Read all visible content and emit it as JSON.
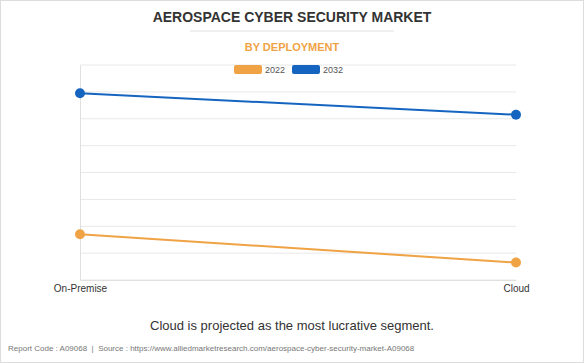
{
  "chart_data": {
    "type": "line",
    "title": "AEROSPACE CYBER SECURITY MARKET",
    "subtitle": "BY DEPLOYMENT",
    "annotations": [
      "Cloud is projected as the most lucrative segment.",
      "Report Code : A09068  |  Source : https://www.alliedmarketresearch.com/aerospace-cyber-security-market-A09068"
    ],
    "categories": [
      "On-Premise",
      "Cloud"
    ],
    "series": [
      {
        "name": "2022",
        "color": "#f0a345",
        "marker": "circle",
        "values": [
          1.7,
          0.65
        ]
      },
      {
        "name": "2032",
        "color": "#1565c0",
        "marker": "circle",
        "values": [
          6.95,
          6.15
        ]
      }
    ],
    "ylim": [
      0,
      8
    ],
    "yticks": [
      0,
      1,
      2,
      3,
      4,
      5,
      6,
      7,
      8
    ],
    "grid": true,
    "legend": "top",
    "tick_labels": "x"
  }
}
